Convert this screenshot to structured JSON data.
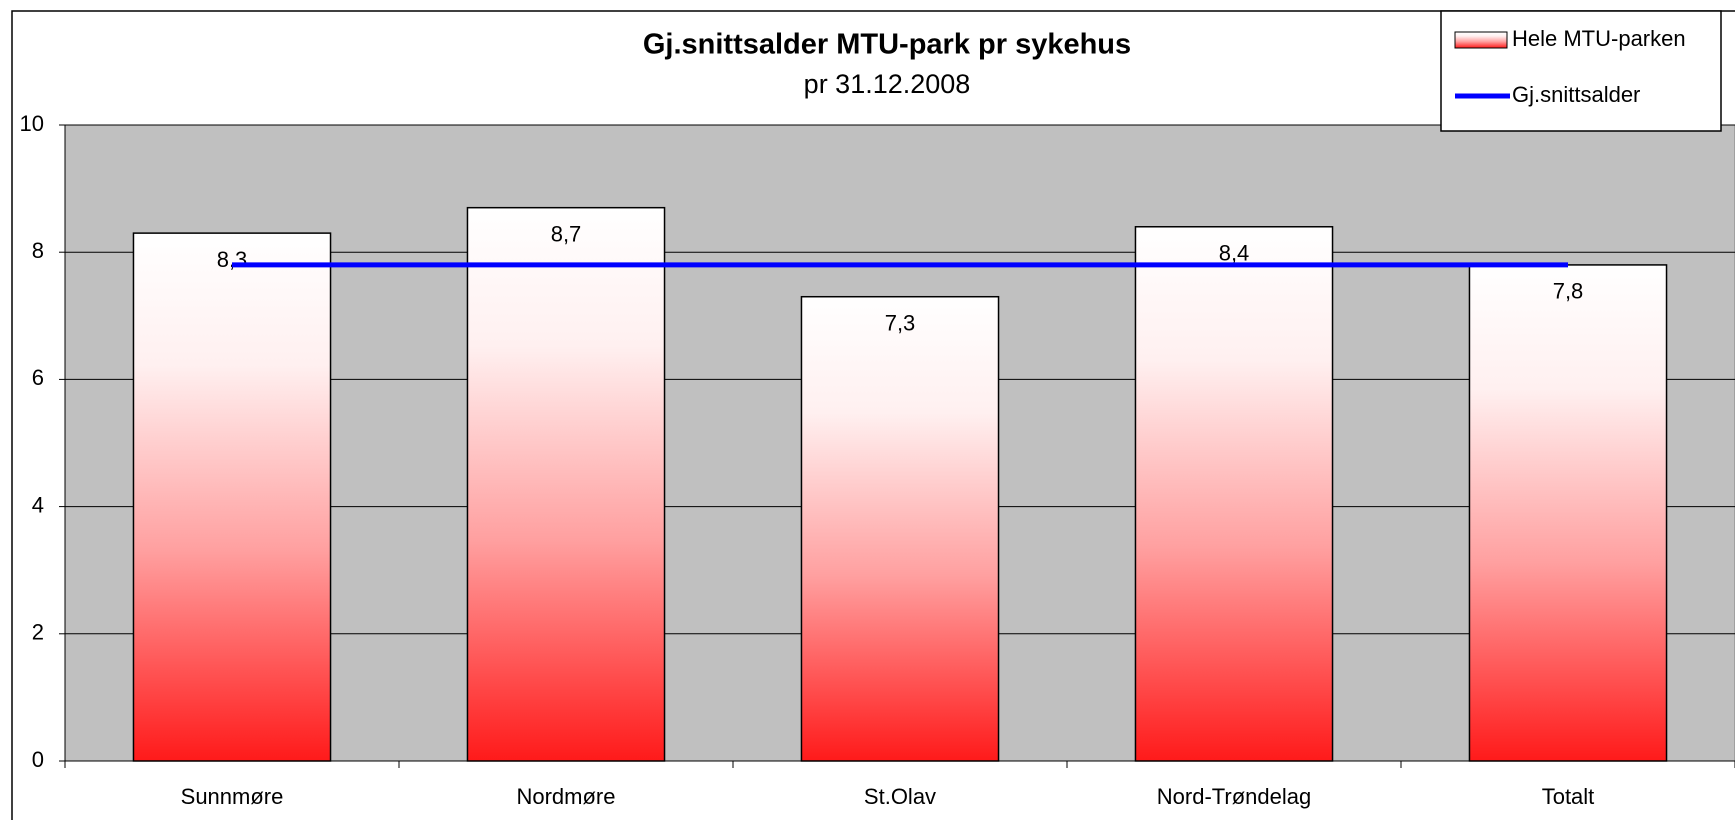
{
  "chart_data": {
    "type": "bar",
    "title": "Gj.snittsalder MTU-park pr sykehus",
    "subtitle": "pr 31.12.2008",
    "categories": [
      "Sunnmøre",
      "Nordmøre",
      "St.Olav",
      "Nord-Trøndelag",
      "Totalt"
    ],
    "series": [
      {
        "name": "Hele MTU-parken",
        "type": "bar",
        "color": "#ff1a1a",
        "values": [
          8.3,
          8.7,
          7.3,
          8.4,
          7.8
        ],
        "value_labels": [
          "8,3",
          "8,7",
          "7,3",
          "8,4",
          "7,8"
        ]
      },
      {
        "name": "Gj.snittsalder",
        "type": "line",
        "color": "#0000ff",
        "values": [
          7.8,
          7.8,
          7.8,
          7.8,
          7.8
        ]
      }
    ],
    "ylim": [
      0,
      10
    ],
    "yticks": [
      0,
      2,
      4,
      6,
      8,
      10
    ],
    "grid": true,
    "legend": "top-right"
  }
}
